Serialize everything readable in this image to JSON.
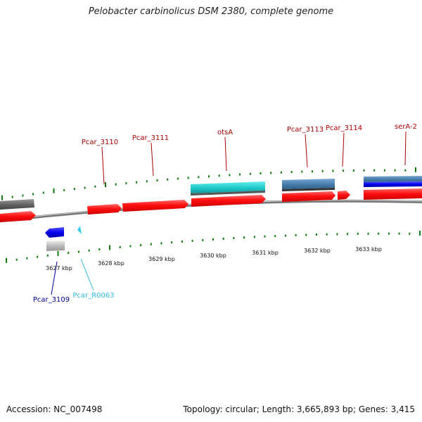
{
  "title": "Pelobacter carbinolicus DSM 2380, complete genome",
  "footer": {
    "accession": "Accession: NC_007498",
    "summary": "Topology: circular; Length: 3,665,893 bp; Genes: 3,415"
  },
  "scale": {
    "unit": "kbp",
    "labels": [
      "3627 kbp",
      "3628 kbp",
      "3629 kbp",
      "3630 kbp",
      "3631 kbp",
      "3632 kbp",
      "3633 kbp"
    ]
  },
  "genes_top": [
    {
      "name": "Pcar_3110",
      "color": "#aa0000"
    },
    {
      "name": "Pcar_3111",
      "color": "#aa0000"
    },
    {
      "name": "otsA",
      "color": "#aa0000"
    },
    {
      "name": "Pcar_3113",
      "color": "#aa0000"
    },
    {
      "name": "Pcar_3114",
      "color": "#aa0000"
    },
    {
      "name": "serA-2",
      "color": "#aa0000"
    }
  ],
  "genes_bottom": [
    {
      "name": "Pcar_3109",
      "color": "#000099"
    },
    {
      "name": "Pcar_R0063",
      "color": "#33bbdd"
    }
  ],
  "colors": {
    "cds_red": "#ff1010",
    "cds_blue": "#0000ee",
    "rna_cyan": "#22cccc",
    "steel_blue": "#4a7fb0",
    "gray": "#666666",
    "light_gray": "#bbbbbb",
    "tick_green": "#117711",
    "backbone": "#888888"
  }
}
